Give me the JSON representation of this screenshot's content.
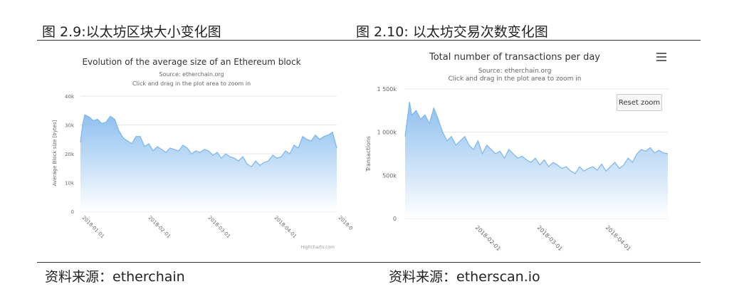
{
  "figures": {
    "left": {
      "caption": "图 2.9:以太坊区块大小变化图",
      "source": "资料来源：etherchain"
    },
    "right": {
      "caption": "图 2.10: 以太坊交易次数变化图",
      "source": "资料来源：etherscan.io"
    }
  },
  "right_chart": {
    "reset_zoom_label": "Reset zoom",
    "menu_icon": "hamburger-menu-icon"
  },
  "colors": {
    "area_top": "#7cb5ec",
    "area_bottom": "#ffffff",
    "line": "#7cb5ec",
    "grid": "#e6e6e6"
  },
  "chart_data": [
    {
      "type": "area",
      "title": "Evolution of the average size of an Ethereum block",
      "subtitle": [
        "Source: etherchain.org",
        "Click and drag in the plot area to zoom in"
      ],
      "ylabel": "Average Block size [bytes]",
      "yticks": [
        "0",
        "10k",
        "20k",
        "30k",
        "40k"
      ],
      "ylim": [
        0,
        40000
      ],
      "xlim": [
        "2018-01-01",
        "2018-05-01"
      ],
      "xticks": [
        {
          "label": "2018-01-01",
          "date": "2018-01-01"
        },
        {
          "label": "2018-02-01",
          "date": "2018-02-01"
        },
        {
          "label": "2018-03-01",
          "date": "2018-03-01"
        },
        {
          "label": "2018-04-01",
          "date": "2018-04-01"
        },
        {
          "label": "2018-0",
          "date": "2018-05-01"
        }
      ],
      "credits": "Highcharts.com",
      "grid": true,
      "series": [
        {
          "x": [
            "2018-01-01",
            "2018-01-02",
            "2018-01-03",
            "2018-01-05",
            "2018-01-07",
            "2018-01-09",
            "2018-01-11",
            "2018-01-13",
            "2018-01-15",
            "2018-01-17",
            "2018-01-19",
            "2018-01-21",
            "2018-01-23",
            "2018-01-25",
            "2018-01-27",
            "2018-01-29",
            "2018-01-31",
            "2018-02-02",
            "2018-02-04",
            "2018-02-06",
            "2018-02-08",
            "2018-02-10",
            "2018-02-12",
            "2018-02-14",
            "2018-02-16",
            "2018-02-18",
            "2018-02-20",
            "2018-02-22",
            "2018-02-24",
            "2018-02-26",
            "2018-02-28",
            "2018-03-02",
            "2018-03-04",
            "2018-03-06",
            "2018-03-08",
            "2018-03-10",
            "2018-03-12",
            "2018-03-14",
            "2018-03-16",
            "2018-03-18",
            "2018-03-20",
            "2018-03-22",
            "2018-03-24",
            "2018-03-26",
            "2018-03-28",
            "2018-03-30",
            "2018-04-01",
            "2018-04-03",
            "2018-04-05",
            "2018-04-07",
            "2018-04-09",
            "2018-04-11",
            "2018-04-13",
            "2018-04-15",
            "2018-04-17",
            "2018-04-19",
            "2018-04-21",
            "2018-04-23",
            "2018-04-25",
            "2018-04-27",
            "2018-04-29",
            "2018-05-01"
          ],
          "values": [
            24000,
            30000,
            33500,
            32800,
            31500,
            32000,
            30500,
            31000,
            33000,
            32000,
            28000,
            25500,
            24500,
            23500,
            26000,
            26000,
            22500,
            23500,
            21000,
            22500,
            21500,
            20500,
            22000,
            21500,
            21000,
            23000,
            22000,
            20000,
            21000,
            20500,
            21500,
            21000,
            19500,
            20500,
            18500,
            20000,
            19000,
            18500,
            17500,
            19000,
            16500,
            15500,
            17500,
            16000,
            17000,
            17500,
            19500,
            18500,
            19000,
            21000,
            20000,
            23000,
            22000,
            26000,
            25000,
            24500,
            26500,
            25000,
            26000,
            26500,
            27500,
            22000
          ]
        }
      ]
    },
    {
      "type": "area",
      "title": "Total number of transactions per day",
      "subtitle": [
        "Source: etherchain.org",
        "Click and drag in the plot area to zoom in"
      ],
      "ylabel": "Transactions",
      "yticks": [
        "0",
        "500k",
        "1 000k",
        "1 500k"
      ],
      "ylim": [
        0,
        1500000
      ],
      "xlim": [
        "2018-01-01",
        "2018-04-30"
      ],
      "xticks": [
        {
          "label": "2018-02-01",
          "date": "2018-02-01"
        },
        {
          "label": "2018-03-01",
          "date": "2018-03-01"
        },
        {
          "label": "2018-04-01",
          "date": "2018-04-01"
        }
      ],
      "grid": true,
      "series": [
        {
          "x": [
            "2018-01-01",
            "2018-01-02",
            "2018-01-03",
            "2018-01-04",
            "2018-01-06",
            "2018-01-08",
            "2018-01-10",
            "2018-01-12",
            "2018-01-14",
            "2018-01-16",
            "2018-01-18",
            "2018-01-20",
            "2018-01-22",
            "2018-01-24",
            "2018-01-26",
            "2018-01-28",
            "2018-01-30",
            "2018-02-01",
            "2018-02-03",
            "2018-02-05",
            "2018-02-07",
            "2018-02-09",
            "2018-02-11",
            "2018-02-13",
            "2018-02-15",
            "2018-02-17",
            "2018-02-19",
            "2018-02-21",
            "2018-02-23",
            "2018-02-25",
            "2018-02-27",
            "2018-03-01",
            "2018-03-03",
            "2018-03-05",
            "2018-03-07",
            "2018-03-09",
            "2018-03-11",
            "2018-03-13",
            "2018-03-15",
            "2018-03-17",
            "2018-03-19",
            "2018-03-21",
            "2018-03-23",
            "2018-03-25",
            "2018-03-27",
            "2018-03-29",
            "2018-03-31",
            "2018-04-02",
            "2018-04-04",
            "2018-04-06",
            "2018-04-08",
            "2018-04-10",
            "2018-04-12",
            "2018-04-14",
            "2018-04-16",
            "2018-04-18",
            "2018-04-20",
            "2018-04-22",
            "2018-04-24",
            "2018-04-26",
            "2018-04-28",
            "2018-04-30"
          ],
          "values": [
            950000,
            1150000,
            1350000,
            1200000,
            1250000,
            1150000,
            1200000,
            1100000,
            1280000,
            1150000,
            1000000,
            900000,
            950000,
            850000,
            900000,
            950000,
            850000,
            800000,
            900000,
            750000,
            850000,
            800000,
            750000,
            780000,
            700000,
            800000,
            750000,
            700000,
            720000,
            680000,
            650000,
            700000,
            620000,
            680000,
            600000,
            650000,
            620000,
            580000,
            600000,
            550000,
            520000,
            600000,
            550000,
            580000,
            600000,
            560000,
            630000,
            550000,
            600000,
            650000,
            580000,
            620000,
            700000,
            650000,
            750000,
            800000,
            780000,
            820000,
            760000,
            790000,
            760000,
            750000
          ]
        }
      ]
    }
  ]
}
